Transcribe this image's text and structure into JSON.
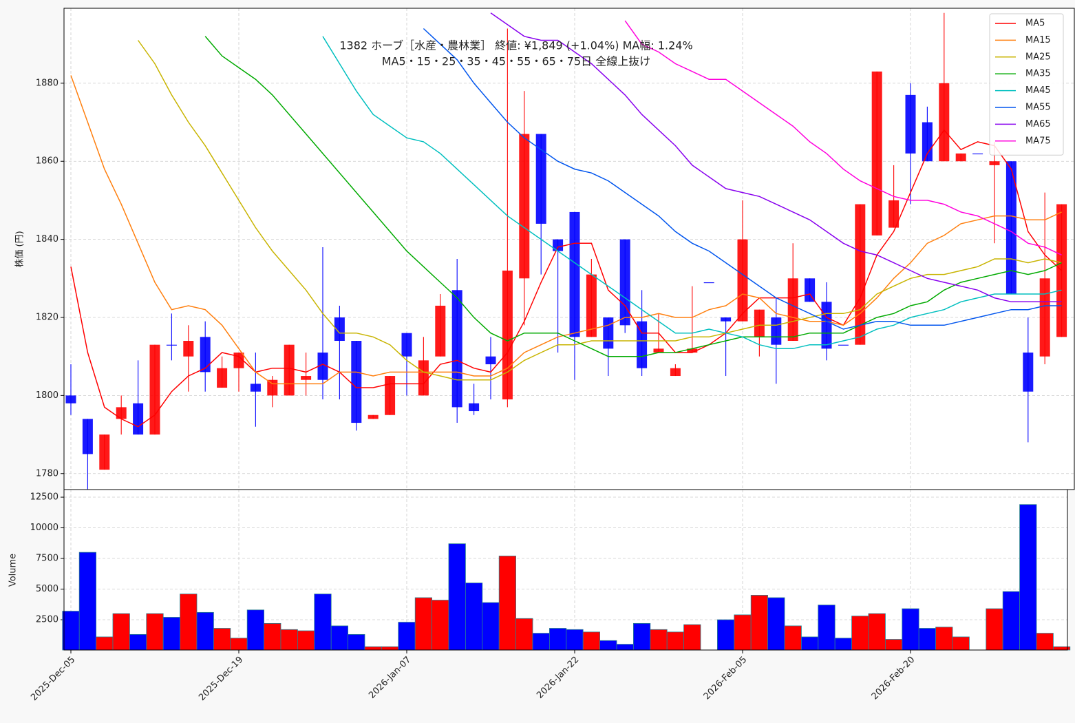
{
  "chart_data": [
    {
      "type": "candlestick",
      "title": "1382  ホーブ［水産・農林業］ 終値: ¥1,849 (+1.04%)  MA幅: 1.24%",
      "subtitle": "MA5・15・25・35・45・55・65・75日 全線上抜け",
      "ylabel": "株価 (円)",
      "categories": [
        "2025-Dec-05",
        null,
        null,
        null,
        null,
        null,
        null,
        null,
        null,
        null,
        "2025-Dec-19",
        null,
        null,
        null,
        null,
        null,
        null,
        null,
        null,
        null,
        "2026-Jan-07",
        null,
        null,
        null,
        null,
        null,
        null,
        null,
        null,
        null,
        "2026-Jan-22",
        null,
        null,
        null,
        null,
        null,
        null,
        null,
        null,
        null,
        "2026-Feb-05",
        null,
        null,
        null,
        null,
        null,
        null,
        null,
        null,
        null,
        "2026-Feb-20",
        null,
        null,
        null,
        null,
        null,
        null,
        null,
        null,
        null
      ],
      "open": [
        1800,
        1794,
        1781,
        1794,
        1798,
        1790,
        1813,
        1810,
        1815,
        1802,
        1807,
        1803,
        1800,
        1800,
        1804,
        1811,
        1820,
        1814,
        1794,
        1795,
        1816,
        1800,
        1810,
        1827,
        1798,
        1810,
        1799,
        1830,
        1867,
        1840,
        1847,
        1815,
        1820,
        1840,
        1819,
        1811,
        1805,
        1811,
        1829,
        1820,
        1819,
        1815,
        1820,
        1814,
        1830,
        1824,
        1813,
        1813,
        1841,
        1843,
        1877,
        1870,
        1860,
        1860,
        1862,
        1859,
        1860,
        1811,
        1810,
        1815
      ],
      "high": [
        1808,
        1794,
        1790,
        1800,
        1809,
        1813,
        1821,
        1818,
        1819,
        1810,
        1811,
        1811,
        1805,
        1813,
        1811,
        1838,
        1823,
        1814,
        1795,
        1805,
        1816,
        1815,
        1826,
        1835,
        1803,
        1815,
        1894,
        1878,
        1867,
        1840,
        1847,
        1835,
        1820,
        1840,
        1827,
        1821,
        1808,
        1828,
        1829,
        1820,
        1850,
        1822,
        1825,
        1839,
        1830,
        1829,
        1813,
        1849,
        1883,
        1859,
        1880,
        1874,
        1898,
        1862,
        1862,
        1865,
        1860,
        1820,
        1852,
        1849
      ],
      "low": [
        1795,
        1776,
        1781,
        1790,
        1790,
        1790,
        1809,
        1801,
        1801,
        1802,
        1801,
        1792,
        1797,
        1800,
        1800,
        1799,
        1799,
        1791,
        1794,
        1795,
        1800,
        1800,
        1810,
        1793,
        1795,
        1799,
        1797,
        1818,
        1831,
        1811,
        1804,
        1815,
        1805,
        1816,
        1805,
        1811,
        1805,
        1811,
        1829,
        1805,
        1819,
        1810,
        1803,
        1814,
        1824,
        1809,
        1813,
        1813,
        1841,
        1843,
        1849,
        1860,
        1860,
        1860,
        1862,
        1839,
        1826,
        1788,
        1808,
        1815
      ],
      "close": [
        1798,
        1785,
        1790,
        1797,
        1790,
        1813,
        1813,
        1814,
        1806,
        1807,
        1811,
        1801,
        1804,
        1813,
        1805,
        1804,
        1814,
        1793,
        1795,
        1805,
        1810,
        1809,
        1823,
        1797,
        1796,
        1808,
        1832,
        1867,
        1844,
        1837,
        1815,
        1831,
        1812,
        1818,
        1807,
        1812,
        1807,
        1812,
        1829,
        1819,
        1840,
        1822,
        1813,
        1830,
        1824,
        1812,
        1813,
        1849,
        1883,
        1850,
        1862,
        1860,
        1880,
        1862,
        1862,
        1860,
        1826,
        1801,
        1830,
        1849
      ],
      "up_color": "#ff0000",
      "down_color": "#0000ff",
      "series": [
        {
          "name": "MA5",
          "color": "#ff0000",
          "values": [
            1833,
            1811,
            1797,
            1794,
            1792,
            1795,
            1801,
            1805,
            1807,
            1811,
            1810,
            1806,
            1807,
            1807,
            1806,
            1808,
            1806,
            1802,
            1802,
            1803,
            1803,
            1803,
            1808,
            1809,
            1807,
            1806,
            1811,
            1819,
            1829,
            1838,
            1839,
            1839,
            1827,
            1823,
            1816,
            1816,
            1811,
            1811,
            1813,
            1816,
            1821,
            1825,
            1825,
            1825,
            1826,
            1820,
            1818,
            1825,
            1836,
            1842,
            1852,
            1862,
            1868,
            1863,
            1865,
            1864,
            1858,
            1842,
            1836,
            1832
          ]
        },
        {
          "name": "MA15",
          "color": "#ff7f0e",
          "values": [
            1882,
            1870,
            1858,
            1849,
            1839,
            1829,
            1822,
            1823,
            1822,
            1818,
            1812,
            1806,
            1803,
            1803,
            1803,
            1803,
            1806,
            1806,
            1805,
            1806,
            1806,
            1806,
            1806,
            1806,
            1805,
            1805,
            1807,
            1811,
            1813,
            1815,
            1816,
            1817,
            1818,
            1820,
            1820,
            1821,
            1820,
            1820,
            1822,
            1823,
            1826,
            1825,
            1821,
            1820,
            1819,
            1819,
            1818,
            1821,
            1825,
            1830,
            1834,
            1839,
            1841,
            1844,
            1845,
            1846,
            1846,
            1845,
            1845,
            1847
          ]
        },
        {
          "name": "MA25",
          "color": "#c8b400",
          "values": [
            null,
            null,
            null,
            null,
            1891,
            1885,
            1877,
            1870,
            1864,
            1857,
            1850,
            1843,
            1837,
            1832,
            1827,
            1821,
            1816,
            1816,
            1815,
            1813,
            1809,
            1806,
            1805,
            1804,
            1804,
            1804,
            1806,
            1809,
            1811,
            1813,
            1813,
            1814,
            1814,
            1814,
            1814,
            1814,
            1814,
            1815,
            1815,
            1816,
            1817,
            1818,
            1818,
            1819,
            1820,
            1821,
            1821,
            1822,
            1826,
            1828,
            1830,
            1831,
            1831,
            1832,
            1833,
            1835,
            1835,
            1834,
            1835,
            1834
          ]
        },
        {
          "name": "MA35",
          "color": "#00aa00",
          "values": [
            null,
            null,
            null,
            null,
            null,
            null,
            null,
            null,
            1892,
            1887,
            1884,
            1881,
            1877,
            1872,
            1867,
            1862,
            1857,
            1852,
            1847,
            1842,
            1837,
            1833,
            1829,
            1825,
            1820,
            1816,
            1814,
            1816,
            1816,
            1816,
            1814,
            1812,
            1810,
            1810,
            1810,
            1811,
            1811,
            1812,
            1813,
            1814,
            1815,
            1815,
            1815,
            1815,
            1816,
            1816,
            1816,
            1818,
            1820,
            1821,
            1823,
            1824,
            1827,
            1829,
            1830,
            1831,
            1832,
            1831,
            1832,
            1834
          ]
        },
        {
          "name": "MA45",
          "color": "#00bfbf",
          "values": [
            null,
            null,
            null,
            null,
            null,
            null,
            null,
            null,
            null,
            null,
            null,
            null,
            null,
            null,
            null,
            1892,
            1885,
            1878,
            1872,
            1869,
            1866,
            1865,
            1862,
            1858,
            1854,
            1850,
            1846,
            1843,
            1840,
            1837,
            1834,
            1831,
            1828,
            1825,
            1822,
            1819,
            1816,
            1816,
            1817,
            1816,
            1815,
            1813,
            1812,
            1812,
            1813,
            1813,
            1814,
            1815,
            1817,
            1818,
            1820,
            1821,
            1822,
            1824,
            1825,
            1826,
            1826,
            1826,
            1826,
            1827
          ]
        },
        {
          "name": "MA55",
          "color": "#0055ee",
          "values": [
            null,
            null,
            null,
            null,
            null,
            null,
            null,
            null,
            null,
            null,
            null,
            null,
            null,
            null,
            null,
            null,
            null,
            null,
            null,
            null,
            null,
            1894,
            1890,
            1886,
            1880,
            1875,
            1870,
            1866,
            1863,
            1860,
            1858,
            1857,
            1855,
            1852,
            1849,
            1846,
            1842,
            1839,
            1837,
            1834,
            1831,
            1828,
            1825,
            1823,
            1821,
            1819,
            1817,
            1818,
            1819,
            1819,
            1818,
            1818,
            1818,
            1819,
            1820,
            1821,
            1822,
            1822,
            1823,
            1823
          ]
        },
        {
          "name": "MA65",
          "color": "#8800ee",
          "values": [
            null,
            null,
            null,
            null,
            null,
            null,
            null,
            null,
            null,
            null,
            null,
            null,
            null,
            null,
            null,
            null,
            null,
            null,
            null,
            null,
            null,
            null,
            null,
            null,
            null,
            1898,
            1895,
            1892,
            1891,
            1891,
            1888,
            1885,
            1881,
            1877,
            1872,
            1868,
            1864,
            1859,
            1856,
            1853,
            1852,
            1851,
            1849,
            1847,
            1845,
            1842,
            1839,
            1837,
            1836,
            1834,
            1832,
            1830,
            1829,
            1828,
            1827,
            1825,
            1824,
            1824,
            1824,
            1824
          ]
        },
        {
          "name": "MA75",
          "color": "#ff00dd",
          "values": [
            null,
            null,
            null,
            null,
            null,
            null,
            null,
            null,
            null,
            null,
            null,
            null,
            null,
            null,
            null,
            null,
            null,
            null,
            null,
            null,
            null,
            null,
            null,
            null,
            null,
            null,
            null,
            null,
            null,
            null,
            null,
            null,
            null,
            1896,
            1890,
            1888,
            1885,
            1883,
            1881,
            1881,
            1878,
            1875,
            1872,
            1869,
            1865,
            1862,
            1858,
            1855,
            1853,
            1851,
            1850,
            1850,
            1849,
            1847,
            1846,
            1844,
            1842,
            1839,
            1838,
            1836
          ]
        }
      ],
      "ylim": [
        1775.9,
        1899.2
      ],
      "yticks": [
        1780,
        1800,
        1820,
        1840,
        1860,
        1880
      ],
      "grid": true,
      "legend": "upper right"
    },
    {
      "type": "bar",
      "ylabel": "Volume",
      "values": [
        3200,
        8000,
        1100,
        3000,
        1300,
        3000,
        2700,
        4600,
        3100,
        1800,
        1000,
        3300,
        2200,
        1700,
        1600,
        4600,
        2000,
        1300,
        300,
        300,
        2300,
        4300,
        4100,
        8700,
        5500,
        3900,
        7700,
        2600,
        1400,
        1800,
        1700,
        1500,
        800,
        500,
        2200,
        1700,
        1500,
        2100,
        0,
        2500,
        2900,
        4500,
        4300,
        2000,
        1100,
        3700,
        1000,
        2800,
        3000,
        900,
        3400,
        1800,
        1900,
        1100,
        0,
        3400,
        4800,
        11900,
        1400,
        300
      ],
      "ylim": [
        30,
        13120
      ],
      "yticks": [
        2500,
        5000,
        7500,
        {
          "value": 10000,
          "label": "10000"
        },
        {
          "value": 12500,
          "label": "12500"
        }
      ],
      "grid": true
    }
  ]
}
